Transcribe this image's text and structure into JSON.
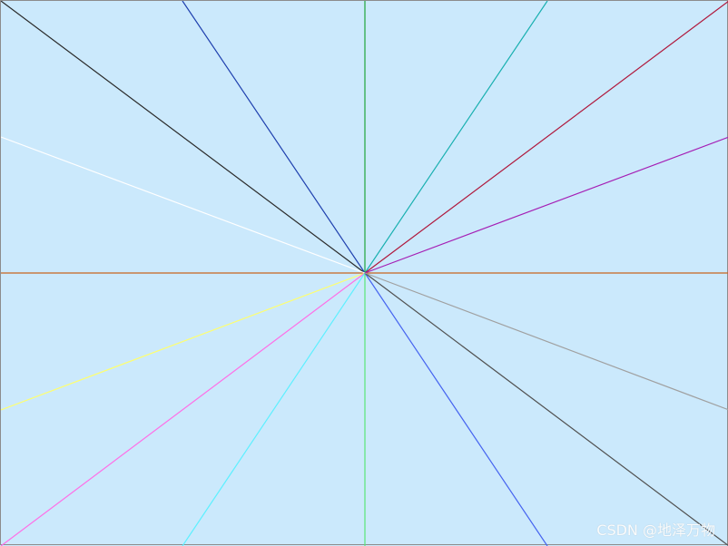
{
  "drawing": {
    "background_color": "#cbe9fc",
    "border_color": "#8c8c8c",
    "rays": [
      {
        "name": "ray-orange-horizontal",
        "color": "#c8641e"
      },
      {
        "name": "ray-black-upper-left",
        "color": "#2a2a2a"
      },
      {
        "name": "ray-navy-upper-left",
        "color": "#1e3fae"
      },
      {
        "name": "ray-green-vertical-up",
        "color": "#1fa63a"
      },
      {
        "name": "ray-teal-upper-right",
        "color": "#19b0b0"
      },
      {
        "name": "ray-darkred-upper-right",
        "color": "#b0183c"
      },
      {
        "name": "ray-purple-upper-right",
        "color": "#a51eb4"
      },
      {
        "name": "ray-white-upper-left",
        "color": "#ffffff"
      },
      {
        "name": "ray-yellow-lower-left",
        "color": "#ffff6e"
      },
      {
        "name": "ray-pink-lower-left",
        "color": "#ff6ee6"
      },
      {
        "name": "ray-cyan-lower-left",
        "color": "#5ef0ff"
      },
      {
        "name": "ray-lightgreen-vertical-down",
        "color": "#5ae678"
      },
      {
        "name": "ray-blue-lower-right",
        "color": "#4664f0"
      },
      {
        "name": "ray-darkgray-lower-right",
        "color": "#505050"
      },
      {
        "name": "ray-gray-lower-right",
        "color": "#a0a0a0"
      }
    ]
  },
  "watermark": {
    "text": "CSDN @地泽万物"
  }
}
